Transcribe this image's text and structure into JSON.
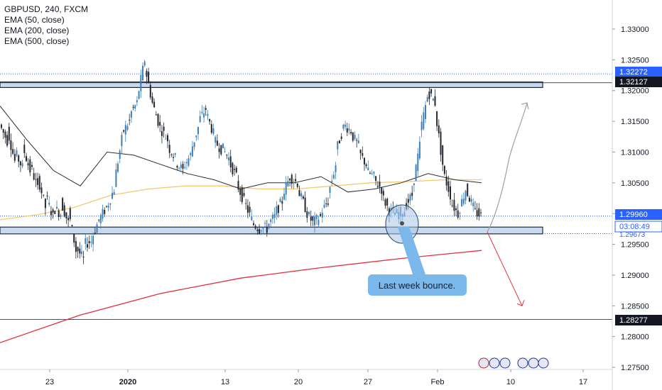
{
  "legend": {
    "symbol": "GBPUSD, 240, FXCM",
    "ema50": "EMA (50, close)",
    "ema200": "EMA (200, close)",
    "ema500": "EMA (500, close)"
  },
  "annotation": {
    "callout_text": "Last week bounce."
  },
  "price_labels": {
    "top_line": "1.32272",
    "resistance": "1.32127",
    "current": "1.29960",
    "countdown": "03:08:49",
    "support": "1.29673",
    "low_line": "1.28277"
  },
  "chart_data": {
    "type": "candlestick",
    "y_axis_ticks": [
      "1.33000",
      "1.32500",
      "1.32000",
      "1.31500",
      "1.31000",
      "1.30500",
      "1.30000",
      "1.29500",
      "1.29000",
      "1.28500",
      "1.28000",
      "1.27500"
    ],
    "x_axis_ticks": [
      {
        "label": "23",
        "bold": false
      },
      {
        "label": "2020",
        "bold": true
      },
      {
        "label": "13",
        "bold": false
      },
      {
        "label": "20",
        "bold": false
      },
      {
        "label": "27",
        "bold": false
      },
      {
        "label": "Feb",
        "bold": false
      },
      {
        "label": "10",
        "bold": false
      },
      {
        "label": "17",
        "bold": false
      }
    ],
    "ylim": [
      1.2725,
      1.3325
    ],
    "resistance_zone": [
      1.3205,
      1.3214
    ],
    "support_zone": [
      1.2967,
      1.2978
    ],
    "colors": {
      "up": "#3d7fb8",
      "down": "#23272f",
      "zone_fill": "#c9d9f0",
      "zone_border": "#1e2a3a",
      "ema50": "#2b2b2b",
      "ema200": "#f2c96d",
      "ema500": "#e0303a",
      "dotted": "#2962ff",
      "up_arrow": "#9aa0a6",
      "down_arrow": "#e0303a",
      "callout": "#7ab7ea"
    },
    "price_path": [
      [
        1.3145,
        1.3118
      ],
      [
        1.3138,
        1.3085
      ],
      [
        1.31,
        1.3075
      ],
      [
        1.311,
        1.307
      ],
      [
        1.308,
        1.304
      ],
      [
        1.306,
        1.301
      ],
      [
        1.303,
        1.2995
      ],
      [
        1.301,
        1.3
      ],
      [
        1.302,
        1.2985
      ],
      [
        1.3005,
        1.294
      ],
      [
        1.2945,
        1.2925
      ],
      [
        1.295,
        1.2955
      ],
      [
        1.2958,
        1.299
      ],
      [
        1.299,
        1.301
      ],
      [
        1.301,
        1.304
      ],
      [
        1.305,
        1.312
      ],
      [
        1.313,
        1.315
      ],
      [
        1.316,
        1.318
      ],
      [
        1.3185,
        1.325
      ],
      [
        1.324,
        1.318
      ],
      [
        1.318,
        1.314
      ],
      [
        1.314,
        1.312
      ],
      [
        1.311,
        1.309
      ],
      [
        1.3085,
        1.307
      ],
      [
        1.3075,
        1.3095
      ],
      [
        1.31,
        1.314
      ],
      [
        1.315,
        1.317
      ],
      [
        1.3165,
        1.313
      ],
      [
        1.312,
        1.3105
      ],
      [
        1.311,
        1.309
      ],
      [
        1.3085,
        1.306
      ],
      [
        1.305,
        1.302
      ],
      [
        1.302,
        1.299
      ],
      [
        1.2985,
        1.2975
      ],
      [
        1.298,
        1.2975
      ],
      [
        1.298,
        1.2995
      ],
      [
        1.3,
        1.302
      ],
      [
        1.303,
        1.306
      ],
      [
        1.306,
        1.305
      ],
      [
        1.304,
        1.301
      ],
      [
        1.3005,
        1.2985
      ],
      [
        1.2985,
        1.2995
      ],
      [
        1.3,
        1.302
      ],
      [
        1.303,
        1.308
      ],
      [
        1.31,
        1.314
      ],
      [
        1.3145,
        1.3135
      ],
      [
        1.313,
        1.311
      ],
      [
        1.31,
        1.308
      ],
      [
        1.307,
        1.306
      ],
      [
        1.3055,
        1.304
      ],
      [
        1.303,
        1.3005
      ],
      [
        1.3005,
        1.3
      ],
      [
        1.3,
        1.3005
      ],
      [
        1.301,
        1.303
      ],
      [
        1.304,
        1.311
      ],
      [
        1.313,
        1.319
      ],
      [
        1.32,
        1.318
      ],
      [
        1.317,
        1.308
      ],
      [
        1.307,
        1.303
      ],
      [
        1.302,
        1.3
      ],
      [
        1.3,
        1.304
      ],
      [
        1.304,
        1.301
      ],
      [
        1.3005,
        1.2996
      ]
    ],
    "ema50": [
      1.3175,
      1.312,
      1.307,
      1.3045,
      1.31,
      1.3095,
      1.308,
      1.3065,
      1.3055,
      1.304,
      1.305,
      1.305,
      1.306,
      1.3035,
      1.304,
      1.305,
      1.3065,
      1.3055,
      1.305
    ],
    "ema200": [
      1.299,
      1.2998,
      1.301,
      1.303,
      1.304,
      1.3045,
      1.3045,
      1.304,
      1.304,
      1.3045,
      1.305,
      1.3052,
      1.3055,
      1.3055
    ],
    "ema500": [
      1.279,
      1.2835,
      1.287,
      1.2895,
      1.2912,
      1.2927,
      1.294
    ],
    "projection_up": [
      1.297,
      1.305,
      1.318
    ],
    "projection_down": [
      1.297,
      1.285
    ]
  }
}
